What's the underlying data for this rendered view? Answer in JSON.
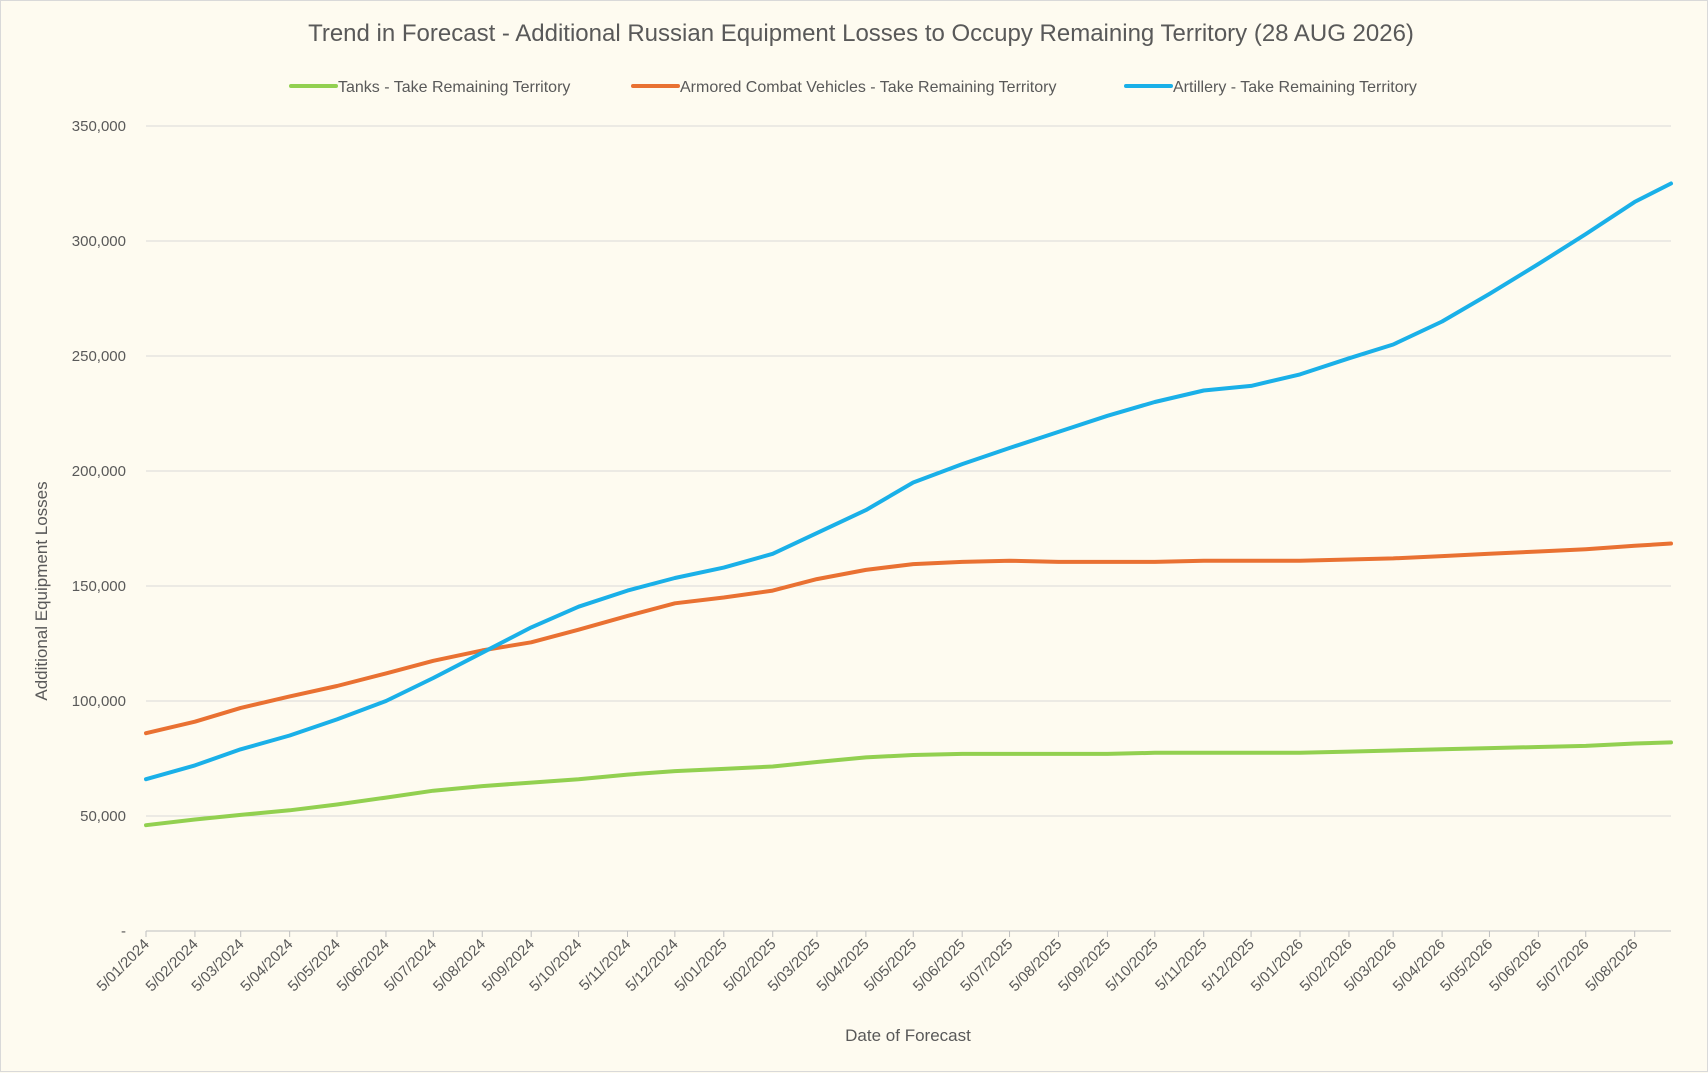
{
  "chart_data": {
    "type": "line",
    "title": "Trend in Forecast - Additional Russian Equipment Losses to Occupy Remaining Territory (28 AUG 2026)",
    "xlabel": "Date of Forecast",
    "ylabel": "Additional Equipment Losses",
    "ylim": [
      0,
      350000
    ],
    "y_ticks": [
      {
        "value": 0,
        "label": "-"
      },
      {
        "value": 50000,
        "label": "50,000"
      },
      {
        "value": 100000,
        "label": "100,000"
      },
      {
        "value": 150000,
        "label": "150,000"
      },
      {
        "value": 200000,
        "label": "200,000"
      },
      {
        "value": 250000,
        "label": "250,000"
      },
      {
        "value": 300000,
        "label": "300,000"
      },
      {
        "value": 350000,
        "label": "350,000"
      }
    ],
    "x_tick_labels": [
      "5/01/2024",
      "5/02/2024",
      "5/03/2024",
      "5/04/2024",
      "5/05/2024",
      "5/06/2024",
      "5/07/2024",
      "5/08/2024",
      "5/09/2024",
      "5/10/2024",
      "5/11/2024",
      "5/12/2024",
      "5/01/2025",
      "5/02/2025",
      "5/03/2025",
      "5/04/2025",
      "5/05/2025",
      "5/06/2025",
      "5/07/2025",
      "5/08/2025",
      "5/09/2025",
      "5/10/2025",
      "5/11/2025",
      "5/12/2025",
      "5/01/2026",
      "5/02/2026",
      "5/03/2026",
      "5/04/2026",
      "5/05/2026",
      "5/06/2026",
      "5/07/2026",
      "5/08/2026"
    ],
    "x_end": "28/08/2026",
    "grid": true,
    "legend": "top",
    "series": [
      {
        "name": "Tanks - Take Remaining Territory",
        "color": "#92d050",
        "points": [
          [
            "5/01/2024",
            46000
          ],
          [
            "5/02/2024",
            48500
          ],
          [
            "5/03/2024",
            50500
          ],
          [
            "5/04/2024",
            52500
          ],
          [
            "5/05/2024",
            55000
          ],
          [
            "5/06/2024",
            58000
          ],
          [
            "5/07/2024",
            61000
          ],
          [
            "5/08/2024",
            63000
          ],
          [
            "5/09/2024",
            64500
          ],
          [
            "5/10/2024",
            66000
          ],
          [
            "5/11/2024",
            68000
          ],
          [
            "5/12/2024",
            69500
          ],
          [
            "5/01/2025",
            70500
          ],
          [
            "5/02/2025",
            71500
          ],
          [
            "5/03/2025",
            73500
          ],
          [
            "5/04/2025",
            75500
          ],
          [
            "5/05/2025",
            76500
          ],
          [
            "5/06/2025",
            77000
          ],
          [
            "5/07/2025",
            77000
          ],
          [
            "5/08/2025",
            77000
          ],
          [
            "5/09/2025",
            77000
          ],
          [
            "5/10/2025",
            77500
          ],
          [
            "5/11/2025",
            77500
          ],
          [
            "5/12/2025",
            77500
          ],
          [
            "5/01/2026",
            77500
          ],
          [
            "5/02/2026",
            78000
          ],
          [
            "5/03/2026",
            78500
          ],
          [
            "5/04/2026",
            79000
          ],
          [
            "5/05/2026",
            79500
          ],
          [
            "5/06/2026",
            80000
          ],
          [
            "5/07/2026",
            80500
          ],
          [
            "5/08/2026",
            81500
          ],
          [
            "28/08/2026",
            82000
          ]
        ]
      },
      {
        "name": "Armored Combat Vehicles - Take Remaining Territory",
        "color": "#e97132",
        "points": [
          [
            "5/01/2024",
            86000
          ],
          [
            "5/02/2024",
            91000
          ],
          [
            "5/03/2024",
            97000
          ],
          [
            "5/04/2024",
            102000
          ],
          [
            "5/05/2024",
            106500
          ],
          [
            "5/06/2024",
            112000
          ],
          [
            "5/07/2024",
            117500
          ],
          [
            "5/08/2024",
            122000
          ],
          [
            "5/09/2024",
            125500
          ],
          [
            "5/10/2024",
            131000
          ],
          [
            "5/11/2024",
            137000
          ],
          [
            "5/12/2024",
            142500
          ],
          [
            "5/01/2025",
            145000
          ],
          [
            "5/02/2025",
            148000
          ],
          [
            "5/03/2025",
            153000
          ],
          [
            "5/04/2025",
            157000
          ],
          [
            "5/05/2025",
            159500
          ],
          [
            "5/06/2025",
            160500
          ],
          [
            "5/07/2025",
            161000
          ],
          [
            "5/08/2025",
            160500
          ],
          [
            "5/09/2025",
            160500
          ],
          [
            "5/10/2025",
            160500
          ],
          [
            "5/11/2025",
            161000
          ],
          [
            "5/12/2025",
            161000
          ],
          [
            "5/01/2026",
            161000
          ],
          [
            "5/02/2026",
            161500
          ],
          [
            "5/03/2026",
            162000
          ],
          [
            "5/04/2026",
            163000
          ],
          [
            "5/05/2026",
            164000
          ],
          [
            "5/06/2026",
            165000
          ],
          [
            "5/07/2026",
            166000
          ],
          [
            "5/08/2026",
            167500
          ],
          [
            "28/08/2026",
            168500
          ]
        ]
      },
      {
        "name": "Artillery - Take Remaining Territory",
        "color": "#1ab0e8",
        "points": [
          [
            "5/01/2024",
            66000
          ],
          [
            "5/02/2024",
            72000
          ],
          [
            "5/03/2024",
            79000
          ],
          [
            "5/04/2024",
            85000
          ],
          [
            "5/05/2024",
            92000
          ],
          [
            "5/06/2024",
            100000
          ],
          [
            "5/07/2024",
            110000
          ],
          [
            "5/08/2024",
            121000
          ],
          [
            "5/09/2024",
            132000
          ],
          [
            "5/10/2024",
            141000
          ],
          [
            "5/11/2024",
            148000
          ],
          [
            "5/12/2024",
            153500
          ],
          [
            "5/01/2025",
            158000
          ],
          [
            "5/02/2025",
            164000
          ],
          [
            "5/03/2025",
            173000
          ],
          [
            "5/04/2025",
            183000
          ],
          [
            "5/05/2025",
            195000
          ],
          [
            "5/06/2025",
            203000
          ],
          [
            "5/07/2025",
            210000
          ],
          [
            "5/08/2025",
            217000
          ],
          [
            "5/09/2025",
            224000
          ],
          [
            "5/10/2025",
            230000
          ],
          [
            "5/11/2025",
            235000
          ],
          [
            "5/12/2025",
            237000
          ],
          [
            "5/01/2026",
            242000
          ],
          [
            "5/02/2026",
            249000
          ],
          [
            "5/03/2026",
            255000
          ],
          [
            "5/04/2026",
            265000
          ],
          [
            "5/05/2026",
            277000
          ],
          [
            "5/06/2026",
            290000
          ],
          [
            "5/07/2026",
            303000
          ],
          [
            "5/08/2026",
            317000
          ],
          [
            "28/08/2026",
            325000
          ]
        ]
      }
    ]
  }
}
